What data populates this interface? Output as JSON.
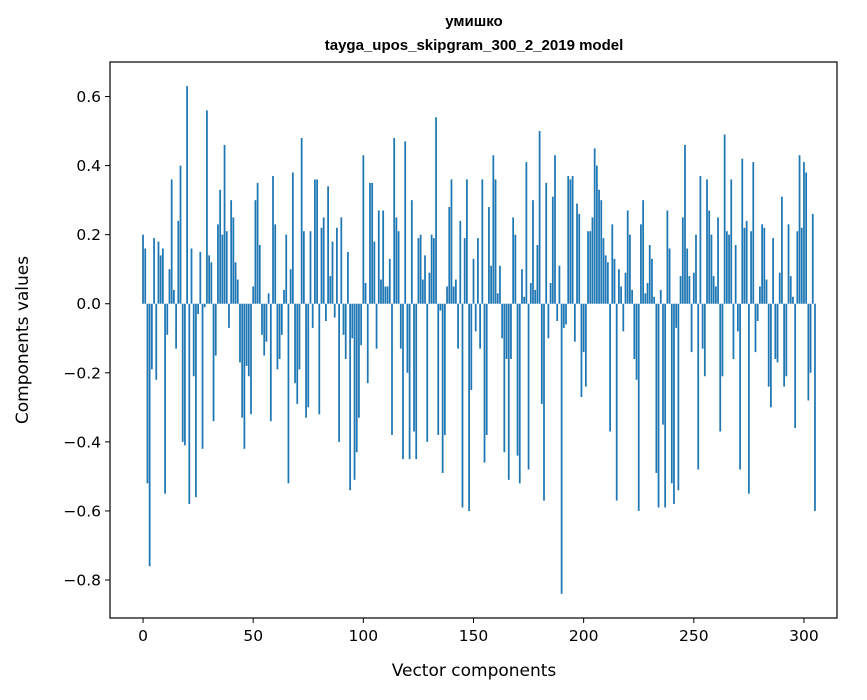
{
  "chart_data": {
    "type": "bar",
    "title": "умишко",
    "subtitle": "tayga_upos_skipgram_300_2_2019 model",
    "xlabel": "Vector components",
    "ylabel": "Components values",
    "xlim": [
      -15,
      315
    ],
    "ylim": [
      -0.91,
      0.7
    ],
    "xticks": [
      0,
      50,
      100,
      150,
      200,
      250,
      300
    ],
    "yticks": [
      -0.8,
      -0.6,
      -0.4,
      -0.2,
      0.0,
      0.2,
      0.4,
      0.6
    ],
    "ytick_labels": [
      "−0.8",
      "−0.6",
      "−0.4",
      "−0.2",
      "0.0",
      "0.2",
      "0.4",
      "0.6"
    ],
    "bar_color": "#1f77b4",
    "grid": false,
    "values": [
      0.2,
      0.16,
      -0.52,
      -0.76,
      -0.19,
      0.19,
      -0.22,
      0.18,
      0.14,
      0.16,
      -0.55,
      -0.09,
      0.1,
      0.36,
      0.04,
      -0.13,
      0.24,
      0.4,
      -0.4,
      -0.41,
      0.63,
      -0.58,
      0.16,
      -0.21,
      -0.56,
      -0.03,
      0.15,
      -0.42,
      -0.01,
      0.56,
      0.14,
      0.12,
      -0.34,
      -0.15,
      0.23,
      0.33,
      0.2,
      0.46,
      0.21,
      -0.07,
      0.3,
      0.25,
      0.12,
      0.07,
      -0.17,
      -0.33,
      -0.42,
      -0.18,
      -0.21,
      -0.32,
      0.05,
      0.3,
      0.35,
      0.17,
      -0.09,
      -0.15,
      -0.11,
      0.03,
      -0.34,
      0.37,
      0.23,
      -0.19,
      -0.16,
      -0.09,
      0.04,
      0.2,
      -0.52,
      0.1,
      0.38,
      -0.23,
      -0.29,
      -0.19,
      0.48,
      0.21,
      -0.33,
      -0.3,
      0.21,
      -0.07,
      0.36,
      0.36,
      -0.32,
      0.22,
      0.25,
      -0.05,
      0.34,
      0.08,
      0.18,
      -0.04,
      0.22,
      -0.4,
      0.25,
      -0.09,
      -0.16,
      0.15,
      -0.54,
      -0.1,
      -0.51,
      -0.43,
      -0.33,
      -0.12,
      0.43,
      0.06,
      -0.23,
      0.35,
      0.35,
      0.18,
      -0.13,
      0.27,
      0.07,
      0.27,
      0.05,
      0.05,
      0.13,
      -0.38,
      0.48,
      0.25,
      0.21,
      -0.13,
      -0.45,
      0.47,
      -0.2,
      -0.45,
      0.3,
      -0.37,
      -0.45,
      0.19,
      0.2,
      0.07,
      0.14,
      -0.4,
      0.09,
      0.2,
      0.19,
      0.54,
      -0.38,
      -0.02,
      -0.49,
      -0.38,
      0.05,
      0.28,
      0.36,
      0.05,
      0.07,
      -0.13,
      0.24,
      -0.59,
      0.19,
      0.36,
      -0.6,
      -0.25,
      0.13,
      -0.08,
      0.19,
      -0.13,
      0.36,
      -0.46,
      -0.38,
      0.28,
      0.11,
      0.43,
      0.36,
      0.03,
      0.11,
      -0.1,
      -0.43,
      -0.16,
      -0.51,
      -0.16,
      0.25,
      0.2,
      -0.44,
      -0.52,
      0.1,
      0.02,
      0.41,
      -0.48,
      0.06,
      0.3,
      0.04,
      0.17,
      0.5,
      -0.29,
      -0.57,
      0.35,
      -0.1,
      0.06,
      0.31,
      0.43,
      -0.05,
      0.11,
      -0.84,
      -0.07,
      -0.06,
      0.37,
      0.36,
      0.37,
      -0.11,
      0.29,
      0.26,
      -0.27,
      -0.14,
      -0.24,
      0.21,
      0.21,
      0.25,
      0.45,
      0.4,
      0.33,
      0.3,
      0.19,
      0.14,
      0.12,
      -0.37,
      0.23,
      0.13,
      -0.57,
      0.1,
      0.05,
      -0.08,
      0.09,
      0.27,
      0.2,
      0.04,
      -0.16,
      -0.22,
      -0.6,
      0.23,
      0.3,
      0.03,
      0.06,
      0.17,
      0.13,
      0.02,
      -0.49,
      -0.59,
      0.04,
      -0.35,
      -0.59,
      0.27,
      0.16,
      -0.52,
      -0.58,
      -0.07,
      -0.54,
      0.08,
      0.25,
      0.46,
      0.16,
      0.08,
      -0.14,
      0.09,
      0.2,
      -0.48,
      0.37,
      -0.13,
      -0.21,
      0.36,
      0.27,
      0.2,
      0.08,
      0.05,
      0.25,
      -0.37,
      -0.21,
      0.49,
      0.21,
      0.2,
      0.36,
      -0.16,
      0.17,
      -0.08,
      -0.48,
      0.42,
      0.22,
      0.24,
      -0.55,
      0.21,
      0.41,
      -0.14,
      -0.05,
      0.05,
      0.23,
      0.22,
      0.07,
      -0.24,
      -0.3,
      0.19,
      -0.16,
      -0.17,
      0.09,
      0.31,
      -0.24,
      -0.21,
      0.23,
      0.08,
      0.02,
      -0.36,
      0.21,
      0.43,
      0.22,
      0.41,
      0.38,
      -0.28,
      -0.2,
      0.26,
      -0.6
    ]
  }
}
